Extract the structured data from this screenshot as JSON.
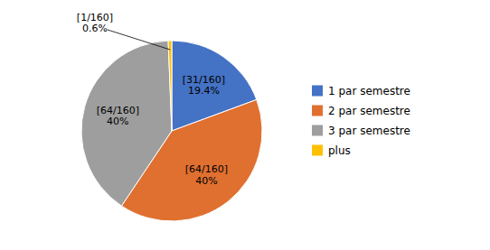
{
  "chart_data": {
    "type": "pie",
    "categories": [
      "1 par semestre",
      "2 par semestre",
      "3 par semestre",
      "plus"
    ],
    "values": [
      31,
      64,
      64,
      1
    ],
    "value_labels": [
      "[31/160]\n19.4%",
      "[64/160]\n40%",
      "[64/160]\n40%",
      "[1/160]\n0.6%"
    ],
    "colors": [
      "#4472C4",
      "#E07030",
      "#9E9E9E",
      "#FFC000"
    ],
    "data_labels": true,
    "legend": "right"
  }
}
